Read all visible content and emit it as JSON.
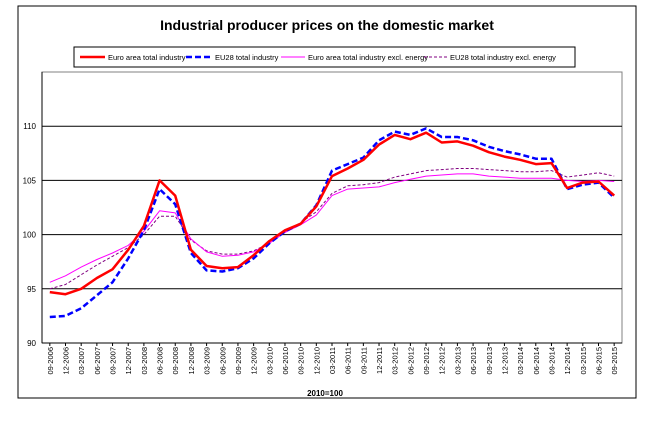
{
  "chart_data": {
    "type": "line",
    "title": "Industrial producer prices on the domestic market",
    "xlabel": "2010=100",
    "ylabel": "",
    "ylim": [
      90,
      115
    ],
    "yticks": [
      90,
      95,
      100,
      105,
      110
    ],
    "grid": true,
    "legend_position": "top",
    "categories": [
      "09-2006",
      "12-2006",
      "03-2007",
      "06-2007",
      "09-2007",
      "12-2007",
      "03-2008",
      "06-2008",
      "09-2008",
      "12-2008",
      "03-2009",
      "06-2009",
      "09-2009",
      "12-2009",
      "03-2010",
      "06-2010",
      "09-2010",
      "12-2010",
      "03-2011",
      "06-2011",
      "09-2011",
      "12-2011",
      "03-2012",
      "06-2012",
      "09-2012",
      "12-2012",
      "03-2013",
      "06-2013",
      "09-2013",
      "12-2013",
      "03-2014",
      "06-2014",
      "09-2014",
      "12-2014",
      "03-2015",
      "06-2015",
      "09-2015"
    ],
    "series": [
      {
        "name": "Euro area total industry",
        "color": "#ff0000",
        "style": "solid-thick",
        "values": [
          94.7,
          94.5,
          95.0,
          96.0,
          96.8,
          98.6,
          100.8,
          105.0,
          103.6,
          98.6,
          97.1,
          96.9,
          97.0,
          98.1,
          99.4,
          100.4,
          101.0,
          102.6,
          105.4,
          106.1,
          106.9,
          108.3,
          109.2,
          108.8,
          109.4,
          108.5,
          108.6,
          108.2,
          107.6,
          107.2,
          106.9,
          106.5,
          106.6,
          104.3,
          104.8,
          104.9,
          103.6
        ]
      },
      {
        "name": "EU28 total industry",
        "color": "#0000ff",
        "style": "dashed-thick",
        "values": [
          92.4,
          92.5,
          93.2,
          94.4,
          95.6,
          97.8,
          100.4,
          104.2,
          102.8,
          98.3,
          96.7,
          96.6,
          96.9,
          97.8,
          99.2,
          100.3,
          101.0,
          102.7,
          105.9,
          106.5,
          107.1,
          108.7,
          109.5,
          109.2,
          109.8,
          109.0,
          109.0,
          108.7,
          108.1,
          107.7,
          107.4,
          107.0,
          107.0,
          104.2,
          104.6,
          104.8,
          103.4
        ]
      },
      {
        "name": "Euro area total industry excl. energy",
        "color": "#ff00ff",
        "style": "solid-thin",
        "values": [
          95.6,
          96.2,
          97.0,
          97.7,
          98.3,
          99.0,
          100.3,
          102.2,
          102.0,
          99.6,
          98.4,
          98.0,
          98.1,
          98.4,
          99.2,
          100.2,
          100.9,
          101.8,
          103.6,
          104.2,
          104.3,
          104.4,
          104.8,
          105.1,
          105.4,
          105.5,
          105.6,
          105.6,
          105.4,
          105.3,
          105.2,
          105.2,
          105.2,
          105.0,
          104.9,
          105.0,
          104.9
        ]
      },
      {
        "name": "EU28 total industry excl. energy",
        "color": "#800080",
        "style": "dashed-thin",
        "values": [
          95.0,
          95.4,
          96.3,
          97.2,
          98.0,
          98.8,
          100.0,
          101.7,
          101.7,
          99.5,
          98.5,
          98.2,
          98.2,
          98.5,
          99.2,
          100.2,
          101.1,
          102.1,
          103.8,
          104.5,
          104.6,
          104.8,
          105.3,
          105.6,
          105.9,
          106.0,
          106.1,
          106.1,
          106.0,
          105.9,
          105.8,
          105.8,
          105.9,
          105.3,
          105.5,
          105.7,
          105.4
        ]
      }
    ]
  }
}
